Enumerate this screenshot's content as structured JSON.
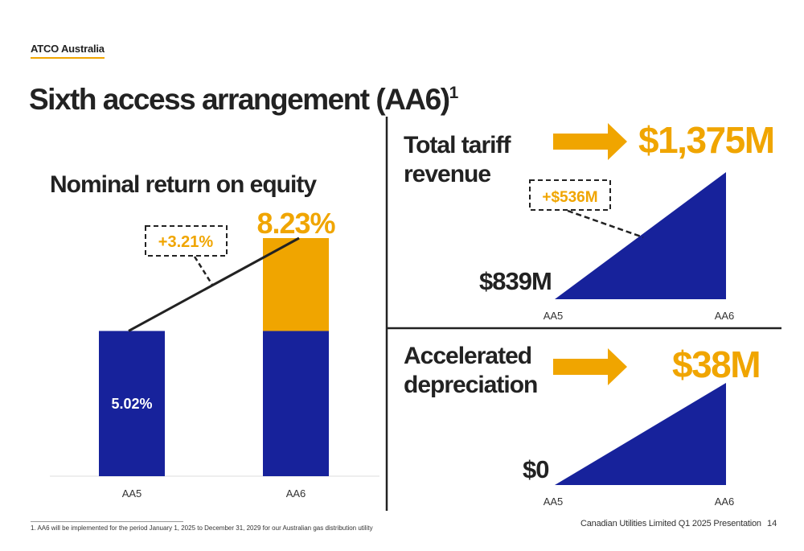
{
  "header": {
    "section_label": "ATCO Australia",
    "title": "Sixth access arrangement (AA6)",
    "title_footnote_ref": "1"
  },
  "colors": {
    "navy": "#17229b",
    "orange": "#f0a500",
    "text": "#222222",
    "divider": "#222222"
  },
  "icons": [
    "right-arrow-icon"
  ],
  "chart_data": [
    {
      "type": "bar",
      "title": "Nominal return on equity",
      "categories": [
        "AA5",
        "AA6"
      ],
      "series": [
        {
          "values": [
            5.02,
            5.02
          ]
        },
        {
          "values": [
            0,
            3.21
          ]
        }
      ],
      "bar_labels": [
        "5.02%",
        "8.23%"
      ],
      "annotation": "+3.21%",
      "ylim": [
        0,
        9
      ]
    },
    {
      "type": "area",
      "title": "Total tariff revenue",
      "categories": [
        "AA5",
        "AA6"
      ],
      "values": [
        839,
        1375
      ],
      "start_label": "$839M",
      "end_label": "$1,375M",
      "annotation": "+$536M"
    },
    {
      "type": "area",
      "title": "Accelerated depreciation",
      "categories": [
        "AA5",
        "AA6"
      ],
      "values": [
        0,
        38
      ],
      "start_label": "$0",
      "end_label": "$38M"
    }
  ],
  "footer": {
    "footnote": "1. AA6 will be implemented for the period January 1, 2025 to December 31, 2029 for our Australian gas distribution utility",
    "presentation": "Canadian Utilities Limited Q1 2025 Presentation",
    "page_number": "14"
  }
}
